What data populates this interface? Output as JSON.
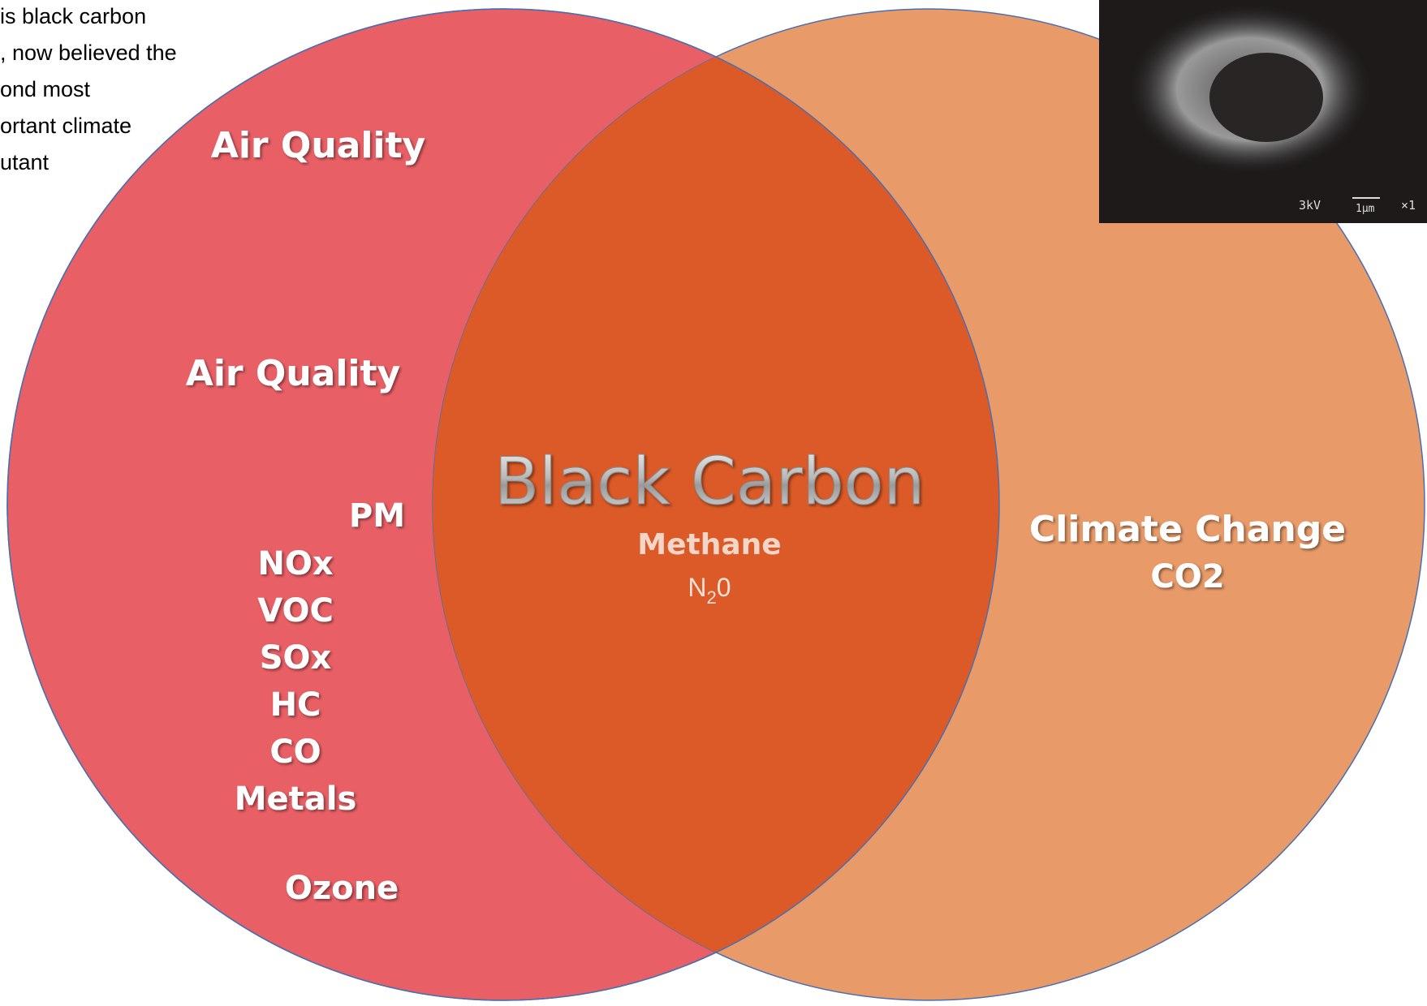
{
  "note_lines": [
    "is black carbon",
    ", now believed the",
    "ond most",
    "ortant climate",
    "utant"
  ],
  "left_circle": {
    "title": "Air Quality"
  },
  "left_only": {
    "title": "Air Quality",
    "items": [
      "PM",
      "NOx",
      "VOC",
      "SOx",
      "HC",
      "CO",
      "Metals"
    ],
    "extra": "Ozone"
  },
  "overlap": {
    "title": "Black Carbon",
    "items": [
      "Methane"
    ],
    "n2o": {
      "base": "N",
      "subscript": "2",
      "after": "0"
    }
  },
  "right_only": {
    "title": "Climate Change",
    "items": [
      "CO2"
    ]
  },
  "micrograph": {
    "voltage": "3kV",
    "scale": "1μm",
    "magnification": "×1"
  }
}
